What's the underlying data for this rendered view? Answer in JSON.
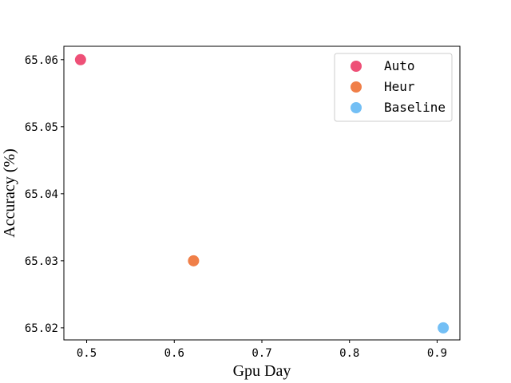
{
  "chart_data": {
    "type": "scatter",
    "xlabel": "Gpu Day",
    "ylabel": "Accuracy (%)",
    "xlim": [
      0.474,
      0.926
    ],
    "ylim": [
      65.0182,
      65.062
    ],
    "xticks": [
      "0.5",
      "0.6",
      "0.7",
      "0.8",
      "0.9"
    ],
    "yticks": [
      "65.02",
      "65.03",
      "65.04",
      "65.05",
      "65.06"
    ],
    "grid": false,
    "legend_position": "top-right",
    "series": [
      {
        "name": "Auto",
        "color": "#ee5077",
        "x": 0.493,
        "y": 65.06
      },
      {
        "name": "Heur",
        "color": "#f07f48",
        "x": 0.622,
        "y": 65.03
      },
      {
        "name": "Baseline",
        "color": "#73bff5",
        "x": 0.907,
        "y": 65.02
      }
    ]
  }
}
